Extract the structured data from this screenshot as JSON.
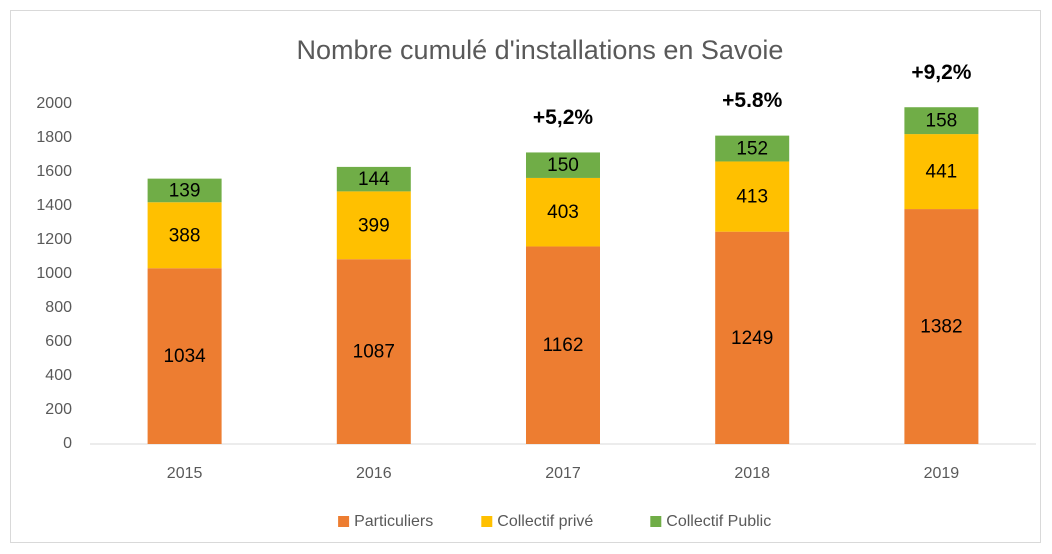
{
  "chart_data": {
    "type": "stacked_bar",
    "title": "Nombre cumulé d'installations en Savoie",
    "categories": [
      "2015",
      "2016",
      "2017",
      "2018",
      "2019"
    ],
    "series": [
      {
        "name": "Particuliers",
        "color": "#ed7d31",
        "values": [
          1034,
          1087,
          1162,
          1249,
          1382
        ]
      },
      {
        "name": "Collectif privé",
        "color": "#ffc000",
        "values": [
          388,
          399,
          403,
          413,
          441
        ]
      },
      {
        "name": "Collectif Public",
        "color": "#70ad47",
        "values": [
          139,
          144,
          150,
          152,
          158
        ]
      }
    ],
    "ylim": [
      0,
      2000
    ],
    "yticks": [
      0,
      200,
      400,
      600,
      800,
      1000,
      1200,
      1400,
      1600,
      1800,
      2000
    ],
    "grid": false,
    "legend": "bottom",
    "annotations": [
      {
        "text": "+5,2%",
        "category": "2017"
      },
      {
        "text": "+5.8%",
        "category": "2018"
      },
      {
        "text": "+9,2%",
        "category": "2019"
      }
    ]
  }
}
